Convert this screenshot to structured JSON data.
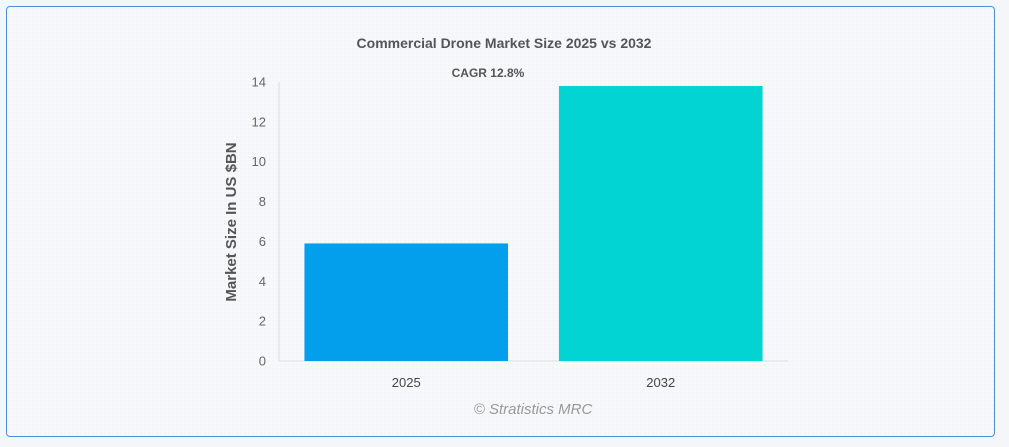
{
  "chart_data": {
    "type": "bar",
    "title": "Commercial Drone Market Size 2025 vs 2032",
    "annotation": "CAGR 12.8%",
    "categories": [
      "2025",
      "2032"
    ],
    "values": [
      5.9,
      13.8
    ],
    "colors": [
      "#039fec",
      "#02d3d3"
    ],
    "ylabel": "Market Size In US $BN",
    "xlabel": "",
    "ylim": [
      0,
      14
    ],
    "yticks": [
      0,
      2,
      4,
      6,
      8,
      10,
      12,
      14
    ],
    "grid": false,
    "credit": "© Stratistics MRC"
  }
}
